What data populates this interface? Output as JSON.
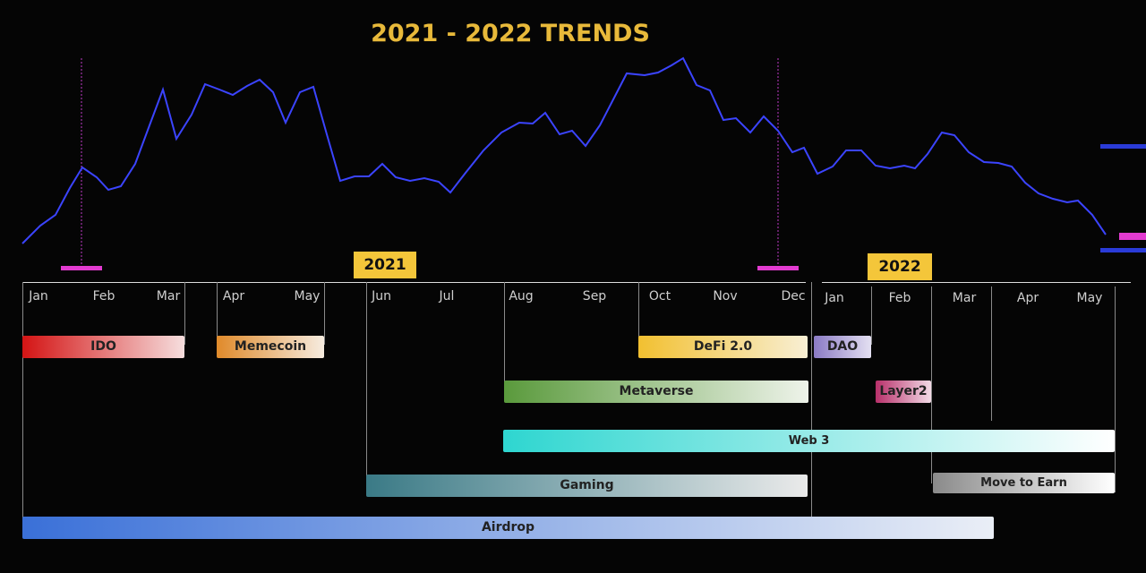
{
  "title": "2021 - 2022 TRENDS",
  "years": [
    "2021",
    "2022"
  ],
  "months_2021": [
    "Jan",
    "Feb",
    "Mar",
    "Apr",
    "May",
    "Jun",
    "Jul",
    "Aug",
    "Sep",
    "Oct",
    "Nov",
    "Dec"
  ],
  "months_2022": [
    "Jan",
    "Feb",
    "Mar",
    "Apr",
    "May"
  ],
  "trends": [
    "IDO",
    "Memecoin",
    "DeFi 2.0",
    "DAO",
    "Metaverse",
    "Layer2",
    "Web 3",
    "Gaming",
    "Move to Earn",
    "Airdrop"
  ]
}
